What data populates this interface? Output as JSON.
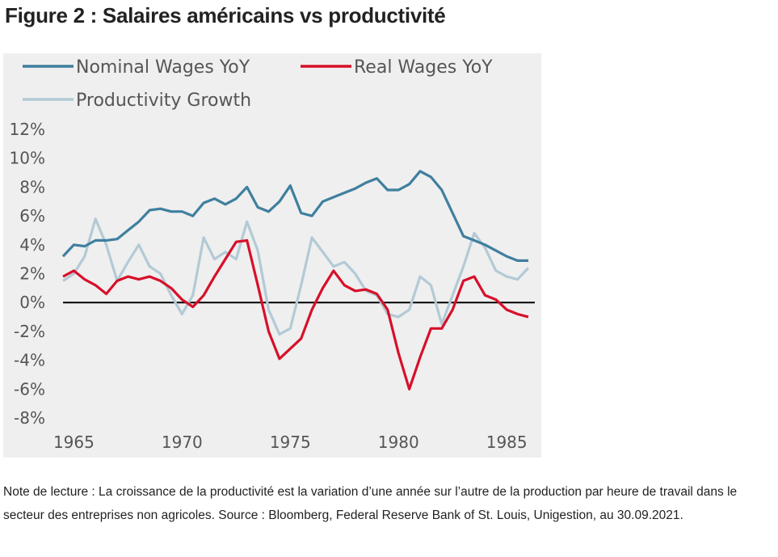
{
  "figure_title": "Figure 2 : Salaires américains vs productivité",
  "note": "Note de lecture : La croissance de la productivité est la variation d’une année sur l’autre de la production par heure de travail dans le secteur des entreprises non agricoles. Source : Bloomberg, Federal Reserve Bank of St. Louis, Unigestion, au 30.09.2021.",
  "colors": {
    "background": "#efefef",
    "nominal": "#3f7f9e",
    "real": "#d7102a",
    "productivity": "#b3cad5",
    "zero_line": "#000000"
  },
  "chart_data": {
    "type": "line",
    "title": "",
    "xlabel": "",
    "ylabel": "",
    "xlim": [
      1964.5,
      1986.3
    ],
    "ylim": [
      -8,
      12
    ],
    "x_ticks": [
      "1965",
      "1970",
      "1975",
      "1980",
      "1985"
    ],
    "y_ticks": [
      "12%",
      "10%",
      "8%",
      "6%",
      "4%",
      "2%",
      "0%",
      "-2%",
      "-4%",
      "-6%",
      "-8%"
    ],
    "legend_position": "top",
    "grid": false,
    "reference_line_y": 0,
    "series": [
      {
        "name": "Nominal Wages YoY",
        "x": [
          1964.5,
          1965.0,
          1965.5,
          1966.0,
          1966.5,
          1967.0,
          1967.5,
          1968.0,
          1968.5,
          1969.0,
          1969.5,
          1970.0,
          1970.5,
          1971.0,
          1971.5,
          1972.0,
          1972.5,
          1973.0,
          1973.5,
          1974.0,
          1974.5,
          1975.0,
          1975.5,
          1976.0,
          1976.5,
          1977.0,
          1977.5,
          1978.0,
          1978.5,
          1979.0,
          1979.5,
          1980.0,
          1980.5,
          1981.0,
          1981.5,
          1982.0,
          1982.5,
          1983.0,
          1983.5,
          1984.0,
          1984.5,
          1985.0,
          1985.5,
          1986.0
        ],
        "values": [
          3.2,
          4.0,
          3.9,
          4.3,
          4.3,
          4.4,
          5.0,
          5.6,
          6.4,
          6.5,
          6.3,
          6.3,
          6.0,
          6.9,
          7.2,
          6.8,
          7.2,
          8.0,
          6.6,
          6.3,
          7.0,
          8.1,
          6.2,
          6.0,
          7.0,
          7.3,
          7.6,
          7.9,
          8.3,
          8.6,
          7.8,
          7.8,
          8.2,
          9.1,
          8.7,
          7.8,
          6.2,
          4.6,
          4.3,
          4.0,
          3.6,
          3.2,
          2.9,
          2.9
        ]
      },
      {
        "name": "Real Wages YoY",
        "x": [
          1964.5,
          1965.0,
          1965.5,
          1966.0,
          1966.5,
          1967.0,
          1967.5,
          1968.0,
          1968.5,
          1969.0,
          1969.5,
          1970.0,
          1970.5,
          1971.0,
          1971.5,
          1972.0,
          1972.5,
          1973.0,
          1973.5,
          1974.0,
          1974.5,
          1975.0,
          1975.5,
          1976.0,
          1976.5,
          1977.0,
          1977.5,
          1978.0,
          1978.5,
          1979.0,
          1979.5,
          1980.0,
          1980.5,
          1981.0,
          1981.5,
          1982.0,
          1982.5,
          1983.0,
          1983.5,
          1984.0,
          1984.5,
          1985.0,
          1985.5,
          1986.0
        ],
        "values": [
          1.8,
          2.2,
          1.6,
          1.2,
          0.6,
          1.5,
          1.8,
          1.6,
          1.8,
          1.5,
          1.0,
          0.2,
          -0.3,
          0.5,
          1.8,
          3.0,
          4.2,
          4.3,
          1.2,
          -2.0,
          -3.9,
          -3.2,
          -2.5,
          -0.5,
          1.0,
          2.2,
          1.2,
          0.8,
          0.9,
          0.6,
          -0.5,
          -3.5,
          -6.0,
          -3.8,
          -1.8,
          -1.8,
          -0.5,
          1.5,
          1.8,
          0.5,
          0.2,
          -0.5,
          -0.8,
          -1.0
        ]
      },
      {
        "name": "Productivity Growth",
        "x": [
          1964.5,
          1965.0,
          1965.5,
          1966.0,
          1966.5,
          1967.0,
          1967.5,
          1968.0,
          1968.5,
          1969.0,
          1969.5,
          1970.0,
          1970.5,
          1971.0,
          1971.5,
          1972.0,
          1972.5,
          1973.0,
          1973.5,
          1974.0,
          1974.5,
          1975.0,
          1975.5,
          1976.0,
          1976.5,
          1977.0,
          1977.5,
          1978.0,
          1978.5,
          1979.0,
          1979.5,
          1980.0,
          1980.5,
          1981.0,
          1981.5,
          1982.0,
          1982.5,
          1983.0,
          1983.5,
          1984.0,
          1984.5,
          1985.0,
          1985.5,
          1986.0
        ],
        "values": [
          1.5,
          2.0,
          3.2,
          5.8,
          4.0,
          1.5,
          2.8,
          4.0,
          2.5,
          2.0,
          0.5,
          -0.8,
          0.5,
          4.5,
          3.0,
          3.5,
          3.0,
          5.6,
          3.6,
          -0.5,
          -2.2,
          -1.8,
          1.2,
          4.5,
          3.5,
          2.5,
          2.8,
          2.0,
          0.8,
          0.5,
          -0.8,
          -1.0,
          -0.5,
          1.8,
          1.2,
          -1.5,
          0.5,
          2.5,
          4.8,
          3.8,
          2.2,
          1.8,
          1.6,
          2.4
        ]
      }
    ]
  }
}
